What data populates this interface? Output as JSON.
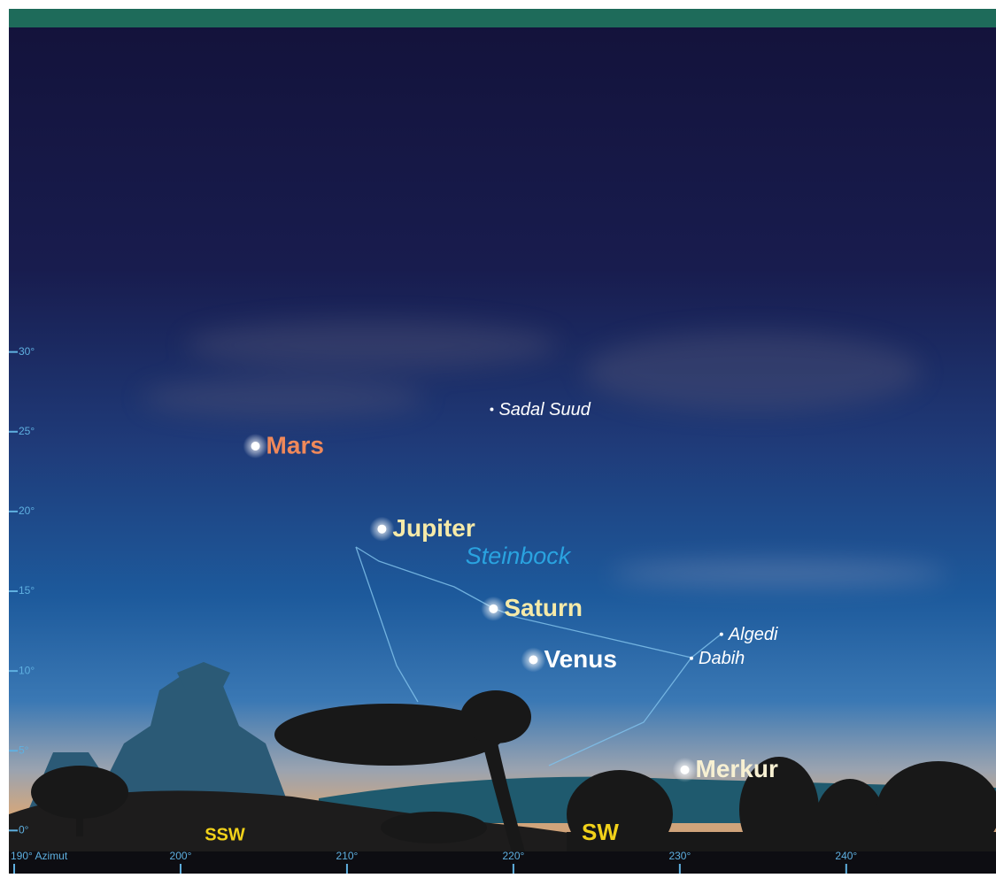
{
  "chart_data": {
    "type": "scatter",
    "xlim": [
      190,
      249
    ],
    "ylim": [
      -2.7,
      50.4
    ],
    "xticks": [
      {
        "value": 190,
        "label": "190° Azimut"
      },
      {
        "value": 200,
        "label": "200°"
      },
      {
        "value": 210,
        "label": "210°"
      },
      {
        "value": 220,
        "label": "220°"
      },
      {
        "value": 230,
        "label": "230°"
      },
      {
        "value": 240,
        "label": "240°"
      }
    ],
    "yticks": [
      {
        "value": 0,
        "label": "0°"
      },
      {
        "value": 5,
        "label": "5°"
      },
      {
        "value": 10,
        "label": "10°"
      },
      {
        "value": 15,
        "label": "15°"
      },
      {
        "value": 20,
        "label": "20°"
      },
      {
        "value": 25,
        "label": "25°"
      },
      {
        "value": 30,
        "label": "30°"
      }
    ],
    "points": [
      {
        "label": "Mars",
        "x": 204.5,
        "y": 24.1,
        "kind": "planet",
        "color": "#f0895a"
      },
      {
        "label": "Jupiter",
        "x": 212.1,
        "y": 18.9,
        "kind": "planet",
        "color": "#f6eaa8"
      },
      {
        "label": "Saturn",
        "x": 218.8,
        "y": 13.9,
        "kind": "planet",
        "color": "#f6eaa8"
      },
      {
        "label": "Venus",
        "x": 221.2,
        "y": 10.7,
        "kind": "planet",
        "color": "#ffffff"
      },
      {
        "label": "Merkur",
        "x": 230.3,
        "y": 3.8,
        "kind": "planet",
        "color": "#f7f0d2"
      },
      {
        "label": "Sadal Suud",
        "x": 218.7,
        "y": 26.4,
        "kind": "star",
        "color": "#ffffff"
      },
      {
        "label": "Algedi",
        "x": 232.5,
        "y": 12.3,
        "kind": "star",
        "color": "#ffffff"
      },
      {
        "label": "Dabih",
        "x": 230.7,
        "y": 10.8,
        "kind": "star",
        "color": "#ffffff"
      }
    ],
    "annotations": [
      "Steinbock"
    ],
    "compass": [
      "SSW",
      "SW"
    ]
  }
}
